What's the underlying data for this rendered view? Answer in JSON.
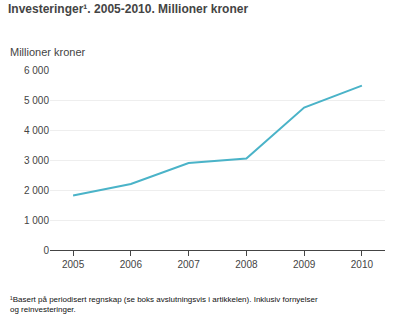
{
  "chart_data": {
    "type": "line",
    "title": "Investeringer¹. 2005-2010. Millioner kroner",
    "ylabel": "Millioner kroner",
    "footnote": "¹Basert på periodisert regnskap (se boks avslutningsvis i artikkelen). Inklusiv fornyelser\nog reinvesteringer.",
    "x": [
      2005,
      2006,
      2007,
      2008,
      2009,
      2010
    ],
    "values": [
      1820,
      2200,
      2900,
      3050,
      4750,
      5480
    ],
    "color": "#4ab3c8",
    "xlim": [
      2004.6,
      2010.4
    ],
    "xticks": [
      2005,
      2006,
      2007,
      2008,
      2009,
      2010
    ],
    "ylim": [
      0,
      6000
    ],
    "yticks": [
      0,
      {
        "value": 1000,
        "label": "1 000"
      },
      {
        "value": 2000,
        "label": "2 000"
      },
      {
        "value": 3000,
        "label": "3 000"
      },
      {
        "value": 4000,
        "label": "4 000"
      },
      {
        "value": 5000,
        "label": "5 000"
      },
      {
        "value": 6000,
        "label": "6 000"
      }
    ],
    "grid": true
  }
}
